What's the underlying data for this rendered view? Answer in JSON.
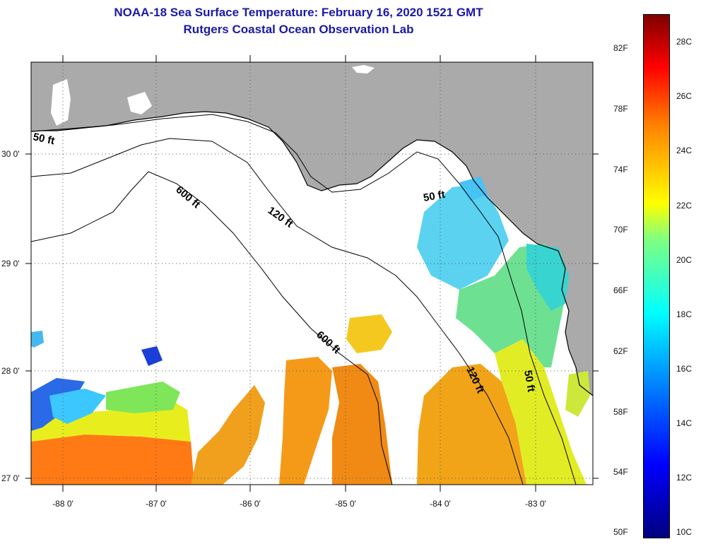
{
  "title": {
    "line1": "NOAA-18 Sea Surface Temperature:  February 16, 2020 1521 GMT",
    "line2": "Rutgers Coastal Ocean Observation Lab"
  },
  "axes": {
    "lat_labels": [
      "30 0'",
      "29 0'",
      "28 0'",
      "27 0'"
    ],
    "lon_labels": [
      "-88 0'",
      "-87 0'",
      "-86 0'",
      "-85 0'",
      "-84 0'",
      "-83 0'"
    ]
  },
  "contours": {
    "labels": [
      "50 ft",
      "120 ft",
      "600 ft",
      "50 ft",
      "600 ft",
      "120 ft",
      "50 ft"
    ]
  },
  "colorbar": {
    "fahrenheit": [
      "82F",
      "78F",
      "74F",
      "70F",
      "66F",
      "62F",
      "58F",
      "54F",
      "50F"
    ],
    "celsius": [
      "28C",
      "26C",
      "24C",
      "22C",
      "20C",
      "18C",
      "16C",
      "14C",
      "12C",
      "10C"
    ]
  },
  "colors": {
    "land": "#aaaaaa",
    "no_data": "#ffffff",
    "title": "#1a1aa6"
  }
}
